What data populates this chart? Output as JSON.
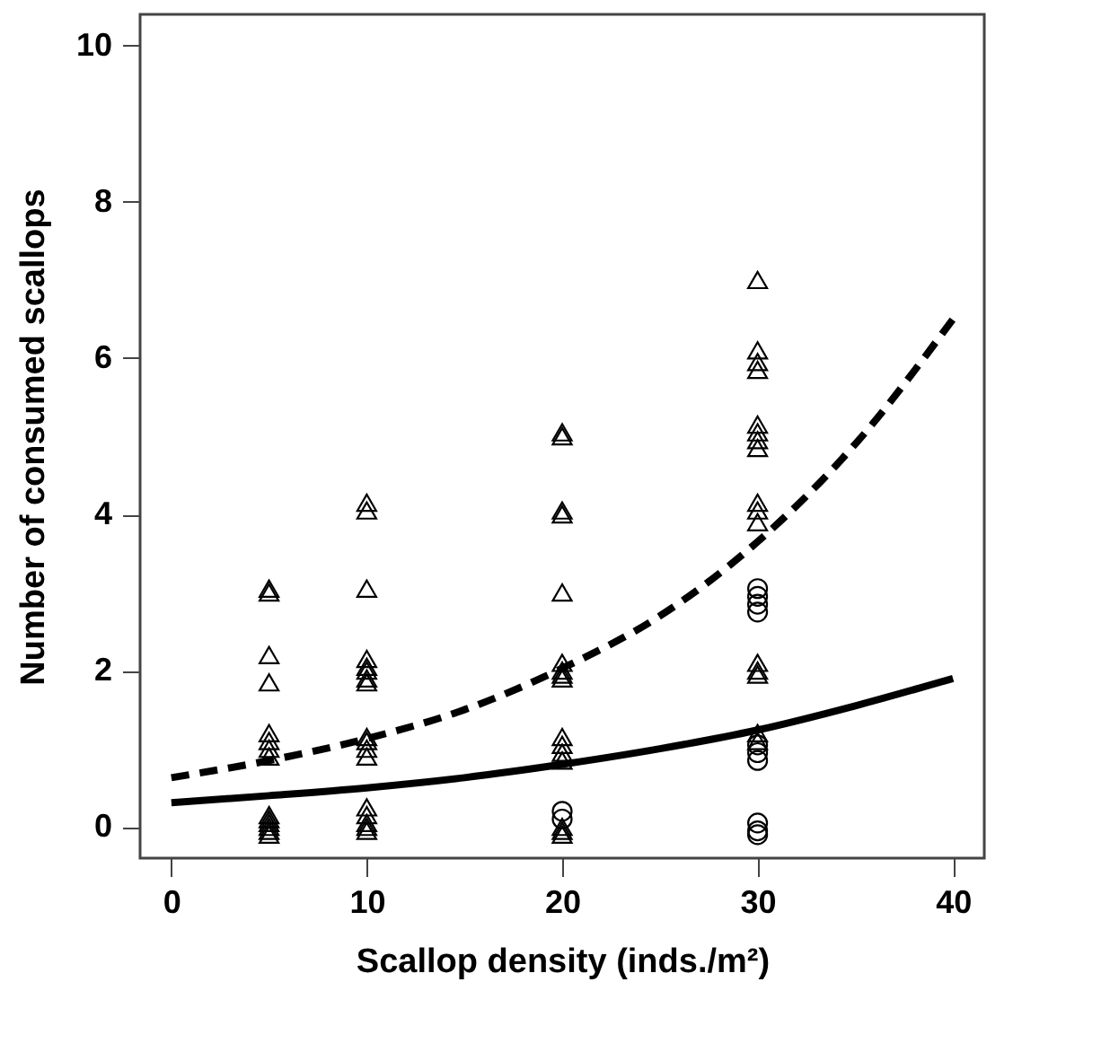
{
  "chart_data": {
    "type": "scatter",
    "xlabel": "Scallop density (inds./m²)",
    "ylabel": "Number of consumed scallops",
    "xlim": [
      -1.6,
      41.6
    ],
    "ylim": [
      -0.4,
      10.4
    ],
    "xticks": [
      0,
      10,
      20,
      30,
      40
    ],
    "yticks": [
      0,
      2,
      4,
      6,
      8,
      10
    ],
    "grid": false,
    "series": [
      {
        "marker": "triangle",
        "color": "#000000",
        "x": [
          5,
          5,
          5,
          5,
          5,
          5,
          5,
          5,
          5,
          5,
          5,
          5,
          5,
          5,
          10,
          10,
          10,
          10,
          10,
          10,
          10,
          10,
          10,
          10,
          10,
          10,
          10,
          10,
          10,
          10,
          10,
          20,
          20,
          20,
          20,
          20,
          20,
          20,
          20,
          20,
          20,
          20,
          20,
          20,
          20,
          20,
          20,
          30,
          30,
          30,
          30,
          30,
          30,
          30,
          30,
          30,
          30,
          30,
          30,
          30,
          30,
          30,
          30
        ],
        "values": [
          3.05,
          3.0,
          2.2,
          1.85,
          1.2,
          1.1,
          1.0,
          0.9,
          0.15,
          0.1,
          0.05,
          0,
          -0.05,
          -0.1,
          4.15,
          4.05,
          3.05,
          2.15,
          2.05,
          2.0,
          1.9,
          1.85,
          1.15,
          1.1,
          1.0,
          0.9,
          0.25,
          0.15,
          0.05,
          0,
          -0.05,
          5.05,
          5.0,
          4.05,
          4.0,
          3.0,
          2.1,
          2.0,
          1.95,
          1.9,
          1.15,
          1.05,
          0.95,
          0.85,
          0,
          -0.05,
          -0.1,
          7.0,
          6.1,
          5.95,
          5.85,
          5.15,
          5.05,
          4.95,
          4.85,
          4.15,
          4.05,
          3.9,
          2.1,
          2.0,
          1.95,
          1.2,
          1.1
        ]
      },
      {
        "marker": "circle",
        "color": "#000000",
        "x": [
          20,
          20,
          30,
          30,
          30,
          30,
          30,
          30,
          30,
          30,
          30,
          30
        ],
        "values": [
          0.2,
          0.1,
          3.05,
          2.95,
          2.85,
          2.75,
          1.05,
          0.95,
          0.85,
          0.05,
          -0.05,
          -0.1
        ]
      },
      {
        "type": "line",
        "line_style": "dashed",
        "color": "#000000",
        "x": [
          0,
          5,
          10,
          15,
          20,
          25,
          30,
          35,
          40
        ],
        "values": [
          0.63,
          0.85,
          1.13,
          1.5,
          2.03,
          2.7,
          3.65,
          4.9,
          6.5
        ]
      },
      {
        "type": "line",
        "line_style": "solid",
        "color": "#000000",
        "x": [
          0,
          5,
          10,
          15,
          20,
          25,
          30,
          35,
          40
        ],
        "values": [
          0.31,
          0.4,
          0.5,
          0.63,
          0.8,
          1.0,
          1.24,
          1.55,
          1.9
        ]
      }
    ]
  }
}
